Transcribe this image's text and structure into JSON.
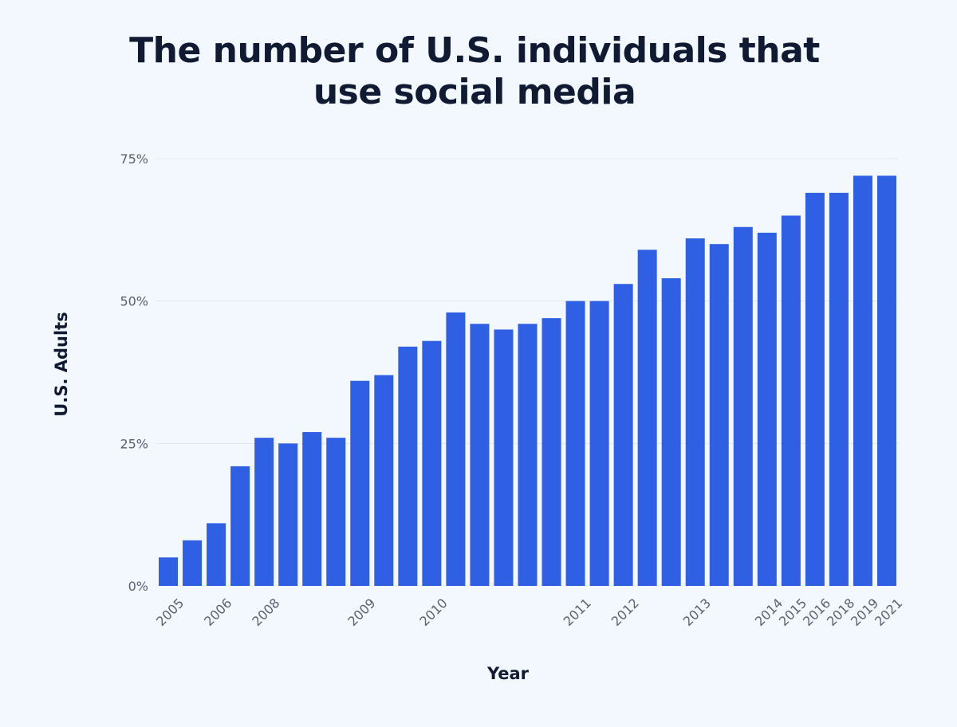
{
  "chart_data": {
    "type": "bar",
    "title_lines": [
      "The number of U.S. individuals that",
      "use social media"
    ],
    "xlabel": "Year",
    "ylabel": "U.S. Adults",
    "ylim": [
      0,
      75
    ],
    "yticks": [
      0,
      25,
      50,
      75
    ],
    "ytick_labels": [
      "0%",
      "25%",
      "50%",
      "75%"
    ],
    "grid": true,
    "bar_color": "#2f5fe3",
    "values": [
      5,
      8,
      11,
      21,
      26,
      25,
      27,
      26,
      36,
      37,
      42,
      43,
      48,
      46,
      45,
      46,
      47,
      50,
      50,
      53,
      59,
      54,
      61,
      60,
      63,
      62,
      65,
      69,
      69,
      72,
      72
    ],
    "x_tick_labels": [
      {
        "bar": 0,
        "label": "2005"
      },
      {
        "bar": 2,
        "label": "2006"
      },
      {
        "bar": 4,
        "label": "2008"
      },
      {
        "bar": 8,
        "label": "2009"
      },
      {
        "bar": 11,
        "label": "2010"
      },
      {
        "bar": 17,
        "label": "2011"
      },
      {
        "bar": 19,
        "label": "2012"
      },
      {
        "bar": 22,
        "label": "2013"
      },
      {
        "bar": 25,
        "label": "2014"
      },
      {
        "bar": 26,
        "label": "2015"
      },
      {
        "bar": 27,
        "label": "2016"
      },
      {
        "bar": 28,
        "label": "2018"
      },
      {
        "bar": 29,
        "label": "2019"
      },
      {
        "bar": 30,
        "label": "2021"
      }
    ]
  }
}
